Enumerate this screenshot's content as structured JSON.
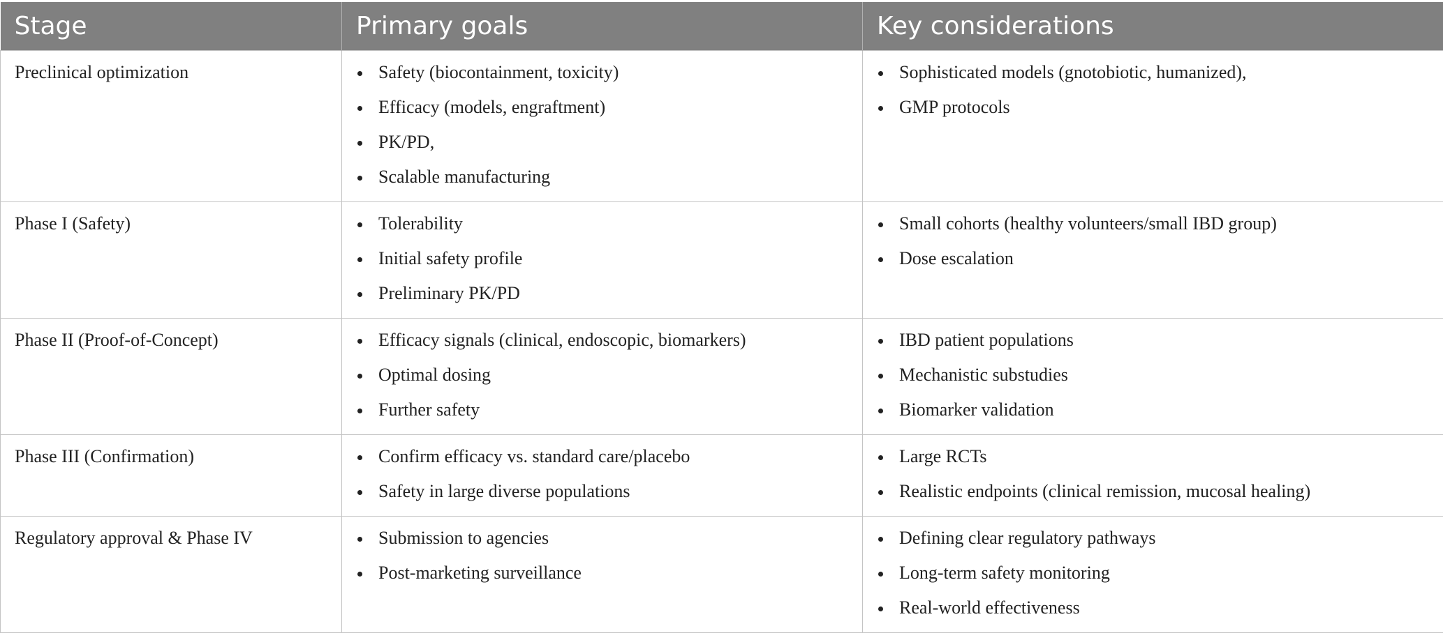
{
  "table": {
    "headers": [
      "Stage",
      "Primary goals",
      "Key considerations"
    ],
    "rows": [
      {
        "stage": "Preclinical optimization",
        "goals": [
          "Safety (biocontainment, toxicity)",
          "Efficacy (models, engraftment)",
          "PK/PD,",
          "Scalable manufacturing"
        ],
        "considerations": [
          "Sophisticated models (gnotobiotic, humanized),",
          "GMP protocols"
        ]
      },
      {
        "stage": "Phase I (Safety)",
        "goals": [
          "Tolerability",
          "Initial safety profile",
          "Preliminary PK/PD"
        ],
        "considerations": [
          "Small cohorts (healthy volunteers/small IBD group)",
          "Dose escalation"
        ]
      },
      {
        "stage": "Phase II (Proof-of-Concept)",
        "goals": [
          "Efficacy signals (clinical, endoscopic, biomarkers)",
          "Optimal dosing",
          "Further safety"
        ],
        "considerations": [
          "IBD patient populations",
          "Mechanistic substudies",
          "Biomarker validation"
        ]
      },
      {
        "stage": "Phase III (Confirmation)",
        "goals": [
          "Confirm efficacy vs. standard care/placebo",
          "Safety in large diverse populations"
        ],
        "considerations": [
          "Large RCTs",
          "Realistic endpoints (clinical remission, mucosal healing)"
        ]
      },
      {
        "stage": "Regulatory approval & Phase IV",
        "goals": [
          "Submission to agencies",
          "Post-marketing surveillance"
        ],
        "considerations": [
          "Defining clear regulatory pathways",
          "Long-term safety monitoring",
          "Real-world effectiveness"
        ]
      }
    ]
  }
}
